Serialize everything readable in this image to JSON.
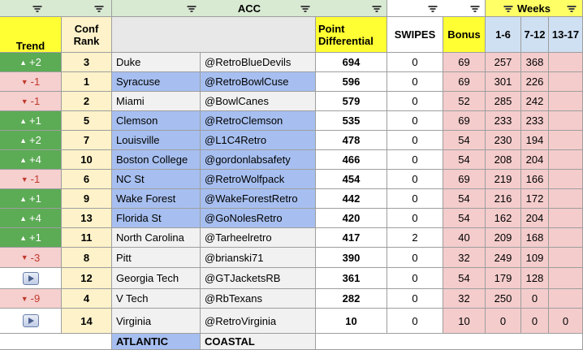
{
  "conference": "ACC",
  "headers": {
    "trend": "Trend",
    "conf_rank": "Conf Rank",
    "point_diff": "Point Differential",
    "swipes": "SWIPES",
    "bonus": "Bonus",
    "weeks": "Weeks",
    "w1": "1-6",
    "w2": "7-12",
    "w3": "13-17"
  },
  "rows": [
    {
      "trend": "+2",
      "dir": "up",
      "rank": "3",
      "team": "Duke",
      "handle": "@RetroBlueDevils",
      "diff": "694",
      "swipes": "0",
      "bonus": "69",
      "w1": "257",
      "w2": "368",
      "w3": "",
      "div": "coastal"
    },
    {
      "trend": "-1",
      "dir": "down",
      "rank": "1",
      "team": "Syracuse",
      "handle": "@RetroBowlCuse",
      "diff": "596",
      "swipes": "0",
      "bonus": "69",
      "w1": "301",
      "w2": "226",
      "w3": "",
      "div": "atlantic"
    },
    {
      "trend": "-1",
      "dir": "down",
      "rank": "2",
      "team": "Miami",
      "handle": "@BowlCanes",
      "diff": "579",
      "swipes": "0",
      "bonus": "52",
      "w1": "285",
      "w2": "242",
      "w3": "",
      "div": "coastal"
    },
    {
      "trend": "+1",
      "dir": "up",
      "rank": "5",
      "team": "Clemson",
      "handle": "@RetroClemson",
      "diff": "535",
      "swipes": "0",
      "bonus": "69",
      "w1": "233",
      "w2": "233",
      "w3": "",
      "div": "atlantic"
    },
    {
      "trend": "+2",
      "dir": "up",
      "rank": "7",
      "team": "Louisville",
      "handle": "@L1C4Retro",
      "diff": "478",
      "swipes": "0",
      "bonus": "54",
      "w1": "230",
      "w2": "194",
      "w3": "",
      "div": "atlantic"
    },
    {
      "trend": "+4",
      "dir": "up",
      "rank": "10",
      "team": "Boston College",
      "handle": "@gordonlabsafety",
      "diff": "466",
      "swipes": "0",
      "bonus": "54",
      "w1": "208",
      "w2": "204",
      "w3": "",
      "div": "atlantic"
    },
    {
      "trend": "-1",
      "dir": "down",
      "rank": "6",
      "team": "NC St",
      "handle": "@RetroWolfpack",
      "diff": "454",
      "swipes": "0",
      "bonus": "69",
      "w1": "219",
      "w2": "166",
      "w3": "",
      "div": "atlantic"
    },
    {
      "trend": "+1",
      "dir": "up",
      "rank": "9",
      "team": "Wake Forest",
      "handle": "@WakeForestRetro",
      "diff": "442",
      "swipes": "0",
      "bonus": "54",
      "w1": "216",
      "w2": "172",
      "w3": "",
      "div": "atlantic"
    },
    {
      "trend": "+4",
      "dir": "up",
      "rank": "13",
      "team": "Florida St",
      "handle": "@GoNolesRetro",
      "diff": "420",
      "swipes": "0",
      "bonus": "54",
      "w1": "162",
      "w2": "204",
      "w3": "",
      "div": "atlantic"
    },
    {
      "trend": "+1",
      "dir": "up",
      "rank": "11",
      "team": "North Carolina",
      "handle": "@Tarheelretro",
      "diff": "417",
      "swipes": "2",
      "bonus": "40",
      "w1": "209",
      "w2": "168",
      "w3": "",
      "div": "coastal"
    },
    {
      "trend": "-3",
      "dir": "down",
      "rank": "8",
      "team": "Pitt",
      "handle": "@brianski71",
      "diff": "390",
      "swipes": "0",
      "bonus": "32",
      "w1": "249",
      "w2": "109",
      "w3": "",
      "div": "coastal"
    },
    {
      "trend": "",
      "dir": "play",
      "rank": "12",
      "team": "Georgia Tech",
      "handle": "@GTJacketsRB",
      "diff": "361",
      "swipes": "0",
      "bonus": "54",
      "w1": "179",
      "w2": "128",
      "w3": "",
      "div": "coastal"
    },
    {
      "trend": "-9",
      "dir": "down",
      "rank": "4",
      "team": "V Tech",
      "handle": "@RbTexans",
      "diff": "282",
      "swipes": "0",
      "bonus": "32",
      "w1": "250",
      "w2": "0",
      "w3": "",
      "div": "coastal"
    },
    {
      "trend": "",
      "dir": "play",
      "rank": "14",
      "team": "Virginia",
      "handle": "@RetroVirginia",
      "diff": "10",
      "swipes": "0",
      "bonus": "10",
      "w1": "0",
      "w2": "0",
      "w3": "0",
      "div": "coastal"
    }
  ],
  "legend": {
    "atlantic": "ATLANTIC",
    "coastal": "COASTAL"
  },
  "colors": {
    "trend_up": "#5cab55",
    "trend_down": "#f6cfcf",
    "rank_bg": "#fdf2c9",
    "atlantic_bg": "#a7bff0",
    "coastal_bg": "#f1f1f1",
    "header_green": "#d8ead2",
    "header_yellow": "#ffff33",
    "bonus_bg": "#f4cccc",
    "weeks_bg": "#f4cccc",
    "weeks_header_bg": "#cfe0f3",
    "weeks_title_bg": "#ffff66"
  }
}
